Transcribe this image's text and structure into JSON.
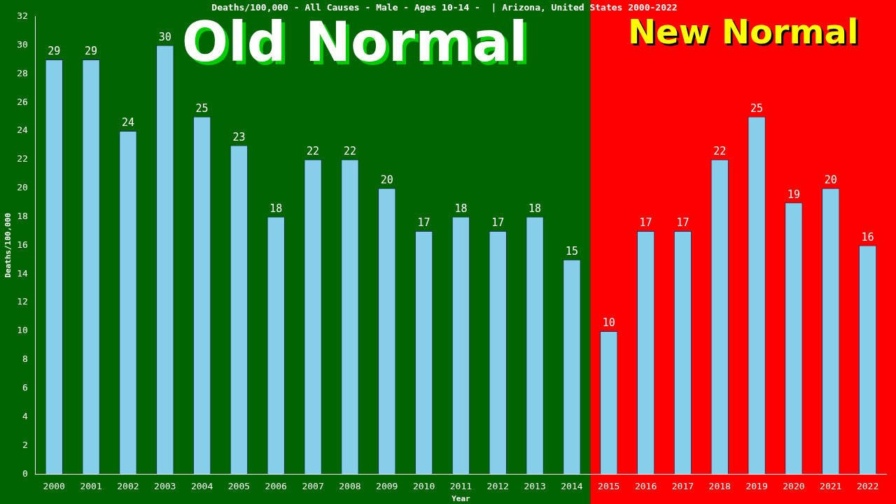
{
  "chart_data": {
    "type": "bar",
    "title": "Deaths/100,000 - All Causes - Male - Ages 10-14 -  | Arizona, United States 2000-2022",
    "xlabel": "Year",
    "ylabel": "Deaths/100,000",
    "categories": [
      "2000",
      "2001",
      "2002",
      "2003",
      "2004",
      "2005",
      "2006",
      "2007",
      "2008",
      "2009",
      "2010",
      "2011",
      "2012",
      "2013",
      "2014",
      "2015",
      "2016",
      "2017",
      "2018",
      "2019",
      "2020",
      "2021",
      "2022"
    ],
    "values": [
      29,
      29,
      24,
      30,
      25,
      23,
      18,
      22,
      22,
      20,
      17,
      18,
      17,
      18,
      15,
      10,
      17,
      17,
      22,
      25,
      19,
      20,
      16
    ],
    "color": "#87ceeb",
    "data_labels": true,
    "grid": false,
    "legend": false,
    "ylim": [
      0,
      32
    ],
    "yticks": [
      0,
      2,
      4,
      6,
      8,
      10,
      12,
      14,
      16,
      18,
      20,
      22,
      24,
      26,
      28,
      30,
      32
    ],
    "bands": [
      {
        "axis": "x",
        "from": "2000",
        "to": "2014",
        "label": "Old Normal",
        "color": "#006400"
      },
      {
        "axis": "x",
        "from": "2015",
        "to": "2022",
        "label": "New Normal",
        "color": "#ff0000"
      }
    ]
  }
}
